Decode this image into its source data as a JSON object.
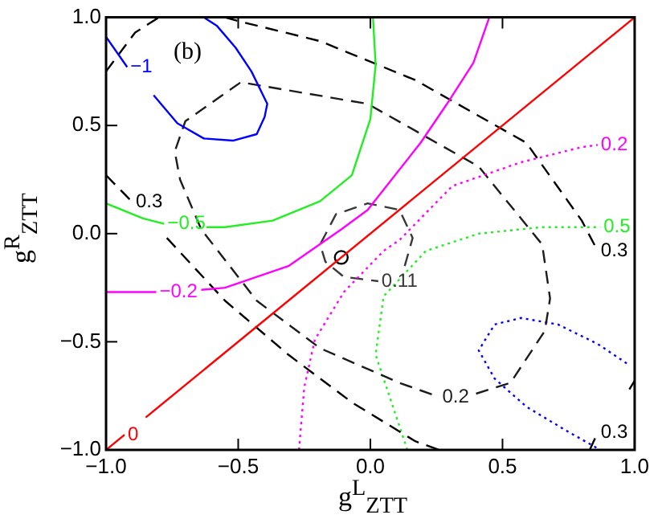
{
  "chart_data": {
    "type": "line",
    "xlabel": "g$^{L}$$_{ZTT}$",
    "ylabel": "g$^{R}$$_{ZTT}$",
    "annotations": [
      "(b)"
    ],
    "xlim": [
      -1,
      1
    ],
    "ylim": [
      -1,
      1
    ],
    "xticks": [
      {
        "value": -1,
        "label": "−1.0"
      },
      {
        "value": -0.5,
        "label": "−0.5"
      },
      {
        "value": 0,
        "label": "0.0"
      },
      {
        "value": 0.5,
        "label": "0.5"
      },
      {
        "value": 1,
        "label": "1.0"
      }
    ],
    "yticks": [
      {
        "value": -1,
        "label": "−1.0"
      },
      {
        "value": -0.5,
        "label": "−0.5"
      },
      {
        "value": 0,
        "label": "0.0"
      },
      {
        "value": 0.5,
        "label": "0.5"
      },
      {
        "value": 1,
        "label": "1.0"
      }
    ],
    "grid": false,
    "series": [
      {
        "name": "−1",
        "color": "#0000ff",
        "line_style": "solid",
        "x": [
          -1,
          -0.92,
          null,
          -0.82,
          -0.73,
          -0.63,
          -0.52,
          -0.43,
          -0.4,
          -0.39,
          -0.45,
          -0.51,
          -0.58,
          -0.63
        ],
        "values": [
          0.91,
          0.77,
          null,
          0.64,
          0.51,
          0.44,
          0.43,
          0.46,
          0.54,
          0.6,
          0.75,
          0.86,
          0.96,
          1.0
        ]
      },
      {
        "name": "−0.5",
        "color": "#22ee22",
        "line_style": "solid",
        "x": [
          -1,
          -0.86,
          -0.78,
          null,
          -0.62,
          -0.55,
          -0.37,
          -0.19,
          -0.07,
          0.0,
          0.02,
          0.01
        ],
        "values": [
          0.14,
          0.07,
          0.045,
          null,
          0.03,
          0.03,
          0.06,
          0.15,
          0.27,
          0.53,
          0.78,
          1.0
        ]
      },
      {
        "name": "−0.2",
        "color": "#ff00ff",
        "line_style": "solid",
        "x": [
          -1,
          -0.81,
          null,
          -0.64,
          -0.55,
          -0.31,
          -0.11,
          -0.01,
          0.19,
          0.29,
          0.39,
          0.45
        ],
        "values": [
          -0.27,
          -0.27,
          null,
          -0.26,
          -0.25,
          -0.15,
          0.02,
          0.11,
          0.42,
          0.6,
          0.79,
          1.0
        ]
      },
      {
        "name": "0",
        "color": "#ff0000",
        "line_style": "solid",
        "x": [
          -1,
          -0.93,
          null,
          -0.85,
          1
        ],
        "values": [
          -1,
          -0.93,
          null,
          -0.85,
          1
        ]
      },
      {
        "name": "0.2",
        "color": "#ff00ff",
        "line_style": "dotted",
        "x": [
          -0.27,
          -0.25,
          -0.21,
          -0.1,
          0.05,
          0.11,
          0.31,
          0.57,
          0.8,
          0.86
        ],
        "values": [
          -1.0,
          -0.71,
          -0.49,
          -0.27,
          -0.08,
          -0.03,
          0.22,
          0.33,
          0.4,
          0.41
        ]
      },
      {
        "name": "0.11",
        "color": "#383838",
        "line_style": "dashed",
        "x": [
          0.13,
          0.16,
          0.11,
          -0.01,
          -0.13,
          -0.19,
          -0.17,
          -0.1,
          0.03
        ],
        "values": [
          -0.15,
          -0.02,
          0.11,
          0.14,
          0.09,
          -0.05,
          -0.13,
          -0.2,
          -0.22
        ]
      },
      {
        "name": "0.2",
        "color": "#1c1c1c",
        "line_style": "dashed",
        "x": [
          0.4,
          0.53,
          0.66,
          0.68,
          0.65,
          0.41,
          -0.01,
          -0.49,
          -0.7,
          -0.74,
          -0.72,
          -0.64,
          -0.43,
          -0.19,
          0.11,
          0.26
        ],
        "values": [
          -0.74,
          -0.69,
          -0.45,
          -0.3,
          -0.05,
          0.31,
          0.6,
          0.7,
          0.52,
          0.38,
          0.25,
          0.02,
          -0.31,
          -0.53,
          -0.69,
          -0.755
        ]
      },
      {
        "name": "0.3",
        "color": "#000000",
        "line_style": "dashed",
        "x": [
          -1,
          -0.89,
          -0.8,
          null,
          -1,
          -0.9,
          null,
          -0.77,
          -0.55,
          -0.31,
          -0.07,
          0.17,
          0.26,
          null,
          -0.55,
          -0.49,
          -0.19,
          0.17,
          0.59,
          0.8,
          0.86,
          null,
          0.83,
          0.86,
          null,
          0.98,
          1.0
        ],
        "values": [
          0.75,
          0.93,
          1.0,
          null,
          0.27,
          0.145,
          null,
          -0.02,
          -0.31,
          -0.56,
          -0.78,
          -0.96,
          -1.0,
          null,
          1.0,
          0.98,
          0.89,
          0.71,
          0.42,
          0.06,
          -0.08,
          null,
          -1.0,
          -0.92,
          null,
          -0.72,
          -0.68
        ]
      },
      {
        "name": "0.5",
        "color": "#22ee22",
        "line_style": "dotted",
        "x": [
          0.14,
          0.08,
          0.02,
          0.05,
          0.21,
          0.41,
          0.65,
          0.81,
          0.87
        ],
        "values": [
          -1.0,
          -0.78,
          -0.56,
          -0.29,
          -0.08,
          0.0,
          0.03,
          0.03,
          0.03
        ]
      },
      {
        "color": "#0000ff",
        "line_style": "dotted",
        "x": [
          0.97,
          0.86,
          0.71,
          0.57,
          0.47,
          0.41,
          0.47,
          0.59,
          0.74,
          0.87
        ],
        "values": [
          -0.6,
          -0.51,
          -0.42,
          -0.39,
          -0.42,
          -0.54,
          -0.67,
          -0.8,
          -0.91,
          -1.0
        ]
      },
      {
        "type": "scatter",
        "color": "#000000",
        "marker": "circle",
        "x": [
          -0.11
        ],
        "values": [
          -0.11
        ]
      }
    ]
  }
}
